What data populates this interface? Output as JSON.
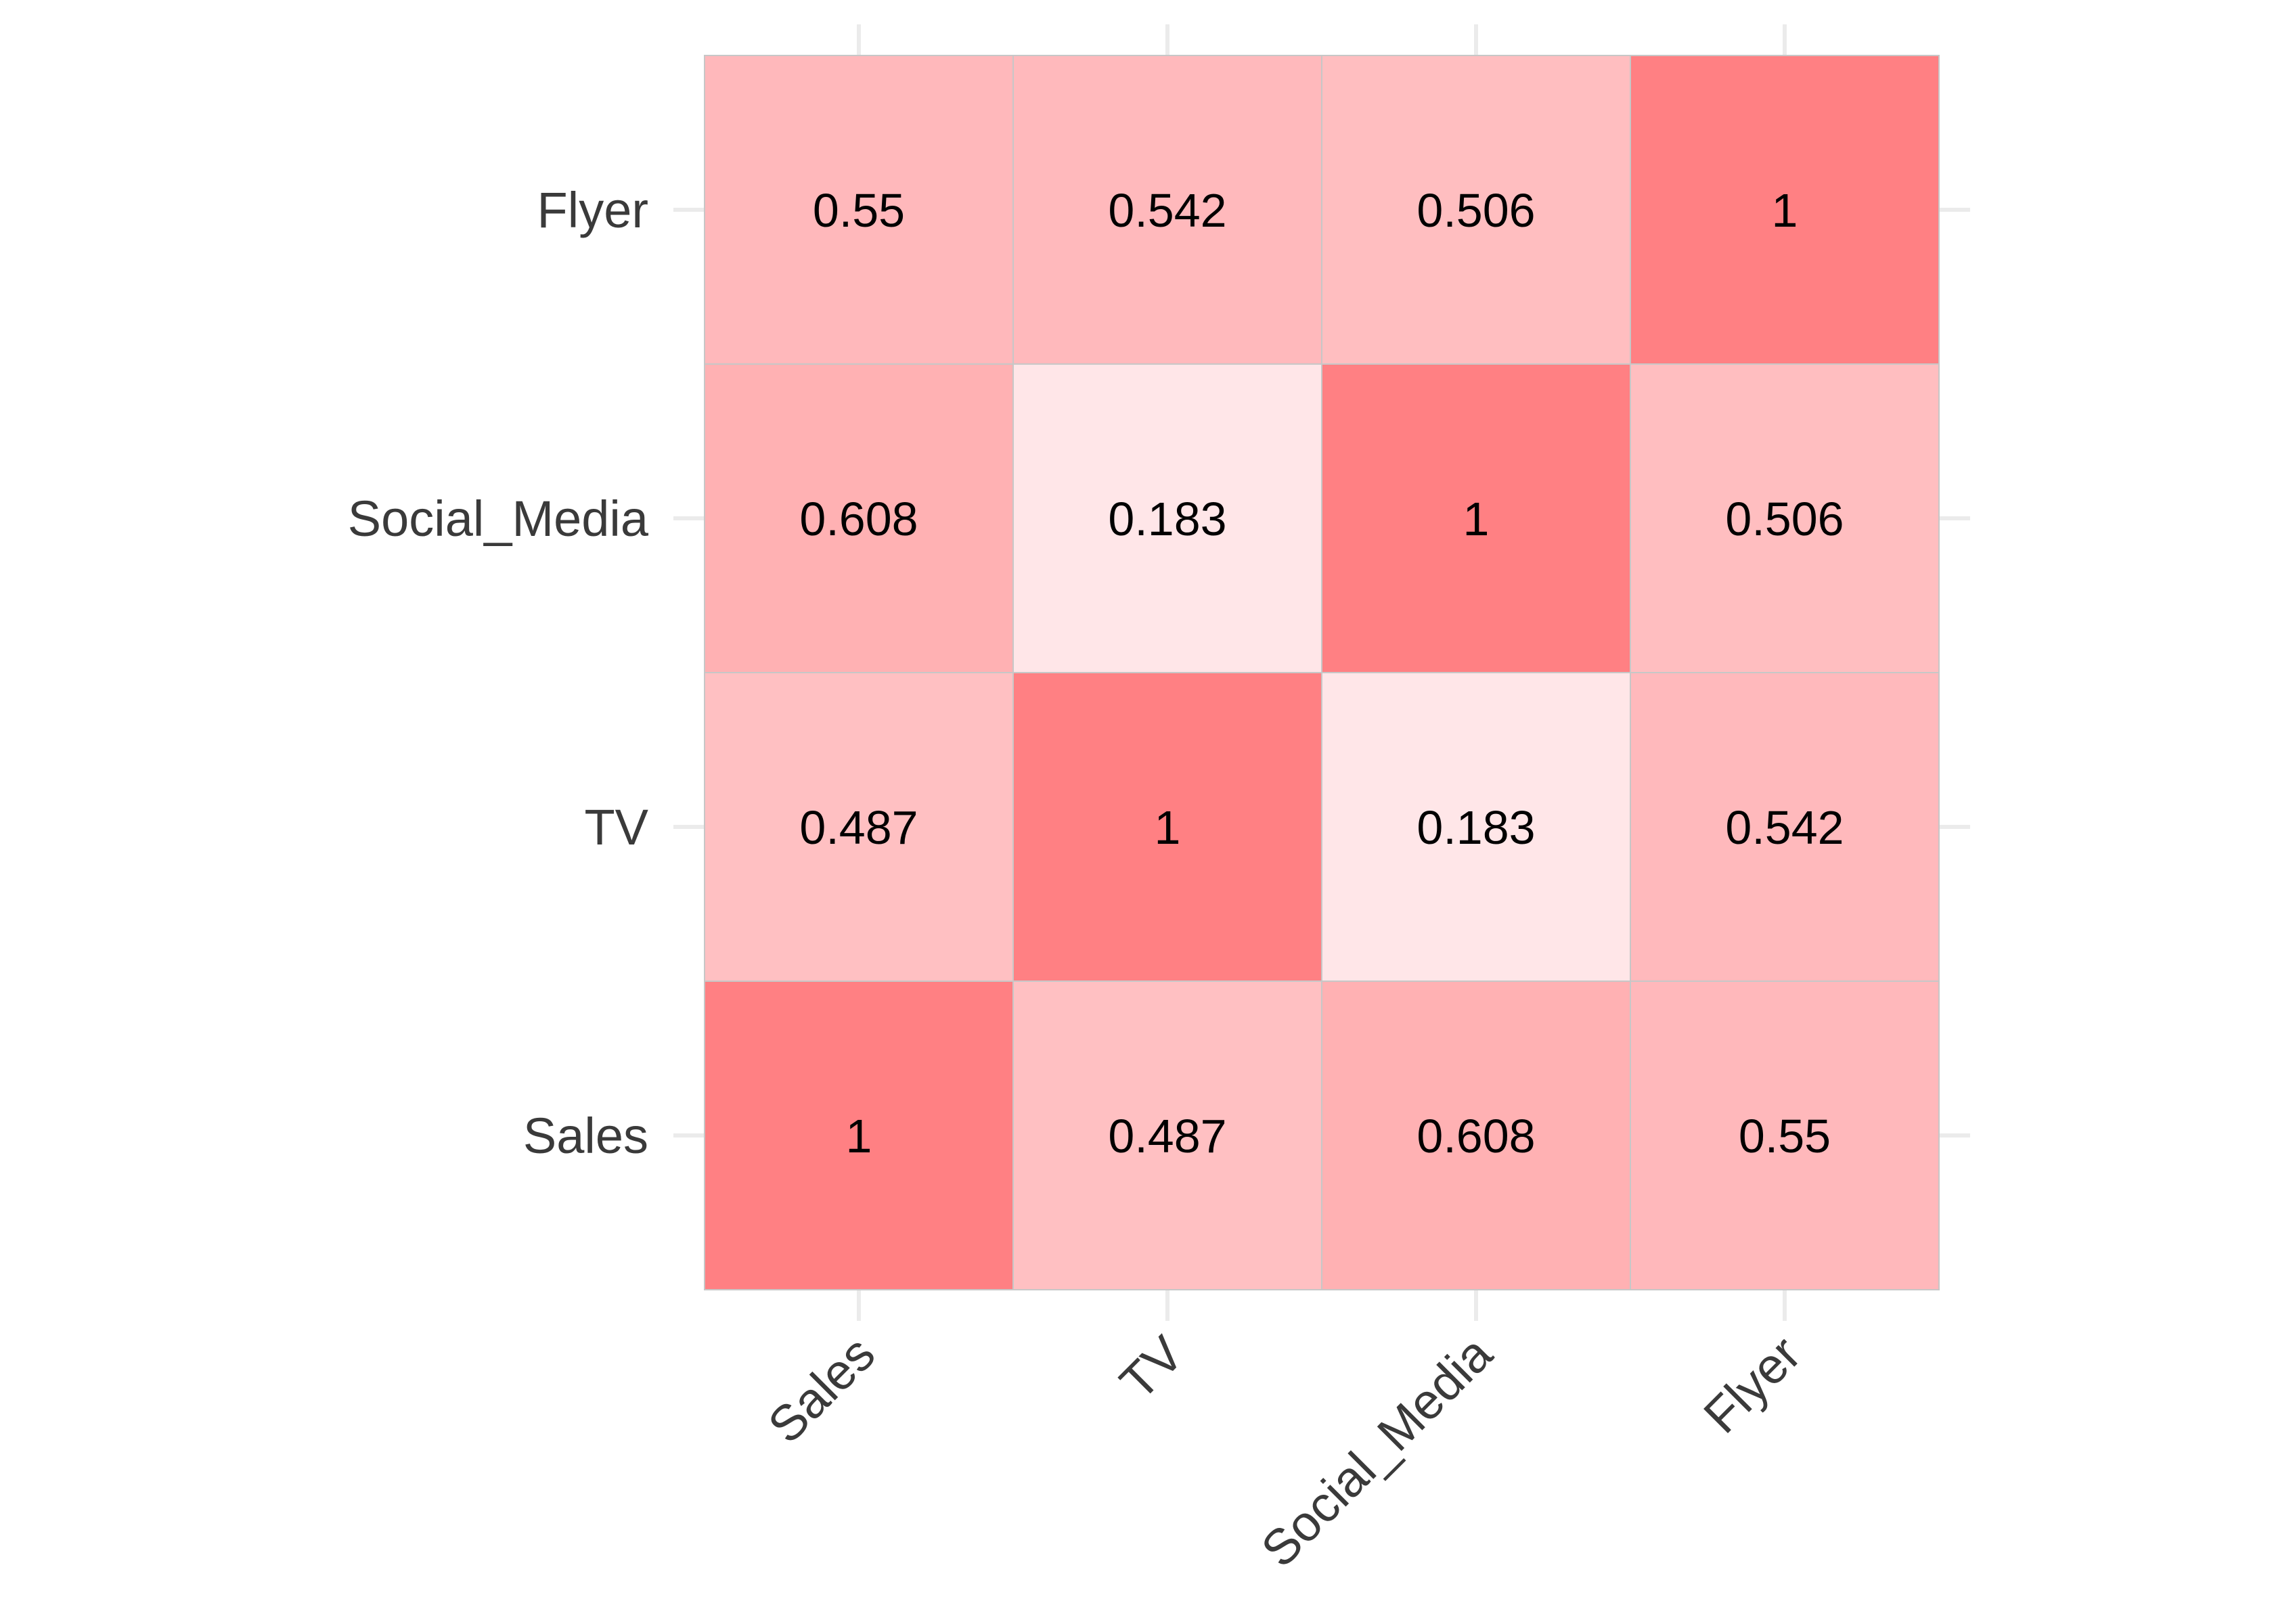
{
  "chart_data": {
    "type": "heatmap",
    "title": "",
    "xlabel": "",
    "ylabel": "",
    "x_categories": [
      "Sales",
      "TV",
      "Social_Media",
      "Flyer"
    ],
    "y_categories": [
      "Sales",
      "TV",
      "Social_Media",
      "Flyer"
    ],
    "y_order": "bottom-to-top",
    "values": [
      [
        1,
        0.487,
        0.608,
        0.55
      ],
      [
        0.487,
        1,
        0.183,
        0.542
      ],
      [
        0.608,
        0.183,
        1,
        0.506
      ],
      [
        0.55,
        0.542,
        0.506,
        1
      ]
    ],
    "value_labels": [
      [
        "1",
        "0.487",
        "0.608",
        "0.55"
      ],
      [
        "0.487",
        "1",
        "0.183",
        "0.542"
      ],
      [
        "0.608",
        "0.183",
        "1",
        "0.506"
      ],
      [
        "0.55",
        "0.542",
        "0.506",
        "1"
      ]
    ],
    "color_scale": {
      "low_color": "#ffe6e8",
      "high_color": "#ff8083",
      "domain": [
        0.183,
        1
      ]
    },
    "legend": "none",
    "grid": true
  }
}
